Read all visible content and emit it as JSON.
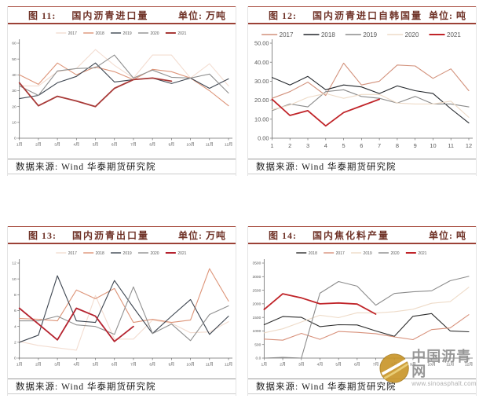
{
  "watermark": {
    "site_name": "中国沥青网",
    "site_url": "www.sinoasphalt.com",
    "logo_icon": "gold-swoosh-circle",
    "logo_color": "#c9962b"
  },
  "panels": [
    {
      "fig_label": "图 11:",
      "title": "国内沥青进口量",
      "unit": "单位: 万吨",
      "source": "数据来源: Wind 华泰期货研究院"
    },
    {
      "fig_label": "图 12:",
      "title": "国内沥青进口自韩国量",
      "unit": "单位: 吨",
      "source": "数据来源: Wind 华泰期货研究院"
    },
    {
      "fig_label": "图 13:",
      "title": "国内沥青出口量",
      "unit": "单位: 万吨",
      "source": "数据来源: Wind 华泰期货研究院"
    },
    {
      "fig_label": "图 14:",
      "title": "国内焦化料产量",
      "unit": "单位: 吨",
      "source": "数据来源: Wind 华泰期货研究院"
    }
  ],
  "theme": {
    "header_rule_color": "#9c4136",
    "header_text_color": "#6f3227",
    "axis_color": "#666666"
  },
  "chart_data": [
    {
      "type": "line",
      "title": "国内沥青进口量",
      "ylabel_unit": "万吨",
      "legend_position": "top",
      "categories": [
        "1月",
        "2月",
        "3月",
        "4月",
        "5月",
        "6月",
        "7月",
        "8月",
        "9月",
        "10月",
        "11月",
        "12月"
      ],
      "ylim": [
        0,
        60
      ],
      "yticks": [
        "0",
        "10",
        "20",
        "30",
        "40",
        "50",
        "60"
      ],
      "series": [
        {
          "name": "2017",
          "color": "#f3ddd1",
          "values": [
            33,
            33,
            42,
            44,
            56,
            46,
            38,
            52.5,
            52.5,
            38,
            47,
            33
          ]
        },
        {
          "name": "2018",
          "color": "#dd9478",
          "values": [
            40,
            34,
            47.5,
            40,
            45,
            42,
            37,
            43.5,
            42,
            38,
            30,
            20.5
          ]
        },
        {
          "name": "2019",
          "color": "#3e4651",
          "values": [
            25,
            27,
            35,
            39,
            47.5,
            35.5,
            37,
            38,
            34.5,
            38,
            31.5,
            37.5
          ]
        },
        {
          "name": "2020",
          "color": "#909090",
          "values": [
            33,
            27,
            42.5,
            44,
            44.5,
            52.5,
            38,
            43,
            38.5,
            38,
            40.5,
            28.5
          ]
        },
        {
          "name": "2021",
          "color": "#a83a38",
          "emphasis": true,
          "values": [
            35,
            20.5,
            26.5,
            23.5,
            20,
            31.5,
            37,
            38,
            36
          ]
        }
      ]
    },
    {
      "type": "line",
      "title": "国内沥青进口自韩国量",
      "ylabel_unit": "吨",
      "legend_position": "top",
      "categories": [
        "1",
        "2",
        "3",
        "4",
        "5",
        "6",
        "7",
        "8",
        "9",
        "10",
        "11",
        "12"
      ],
      "ylim": [
        0,
        50
      ],
      "yticks": [
        "0.00",
        "10.00",
        "20.00",
        "30.00",
        "40.00",
        "50.00"
      ],
      "series": [
        {
          "name": "2017",
          "color": "#d2917b",
          "values": [
            21,
            24.5,
            29.5,
            22.5,
            39.5,
            28,
            30,
            38.5,
            38,
            31.5,
            36.5,
            25
          ]
        },
        {
          "name": "2018",
          "color": "#23272c",
          "values": [
            32,
            28,
            32.5,
            25.5,
            28,
            27,
            23.5,
            27.5,
            25,
            23.5,
            15.5,
            8
          ]
        },
        {
          "name": "2019",
          "color": "#8b8b8b",
          "values": [
            14.5,
            18,
            16.5,
            24.5,
            25.5,
            22,
            21,
            18.5,
            22,
            18,
            18,
            16.5
          ]
        },
        {
          "name": "2020",
          "color": "#eedbc8",
          "values": [
            15,
            17.5,
            21.5,
            23.5,
            21,
            23,
            23,
            18.5,
            18,
            18,
            19.5,
            11
          ]
        },
        {
          "name": "2021",
          "color": "#c02429",
          "emphasis": true,
          "values": [
            20.5,
            12,
            14.5,
            6.5,
            13.5,
            17,
            20.5
          ]
        }
      ]
    },
    {
      "type": "line",
      "title": "国内沥青出口量",
      "ylabel_unit": "万吨",
      "legend_position": "top",
      "categories": [
        "1月",
        "2月",
        "3月",
        "4月",
        "5月",
        "6月",
        "7月",
        "8月",
        "9月",
        "10月",
        "11月",
        "12月"
      ],
      "ylim": [
        0,
        12
      ],
      "yticks": [
        "0",
        "2",
        "4",
        "6",
        "8",
        "10",
        "12"
      ],
      "series": [
        {
          "name": "2017",
          "color": "#f3ddd1",
          "values": [
            2.1,
            1.6,
            1.3,
            1.0,
            7.9,
            2.4,
            2.4,
            4.8,
            4.4,
            3.2,
            3.3,
            4.6
          ]
        },
        {
          "name": "2018",
          "color": "#dd9478",
          "values": [
            5.0,
            4.9,
            4.7,
            8.6,
            7.5,
            8.8,
            4.5,
            4.9,
            4.5,
            4.8,
            11.3,
            7.2
          ]
        },
        {
          "name": "2019",
          "color": "#3e4651",
          "values": [
            2.0,
            2.9,
            10.4,
            4.7,
            4.5,
            9.8,
            6.4,
            3.1,
            5.3,
            7.4,
            3.0,
            5.3
          ]
        },
        {
          "name": "2020",
          "color": "#909090",
          "values": [
            4.7,
            4.7,
            5.3,
            4.2,
            4.0,
            3.0,
            9.0,
            3.1,
            4.3,
            2.2,
            5.5,
            6.6
          ]
        },
        {
          "name": "2021",
          "color": "#b5232f",
          "emphasis": true,
          "values": [
            6.3,
            4.3,
            2.3,
            6.3,
            5.3,
            2.1,
            4.0
          ]
        }
      ]
    },
    {
      "type": "line",
      "title": "国内焦化料产量",
      "ylabel_unit": "吨",
      "legend_position": "top",
      "categories": [
        "1月",
        "2月",
        "3月",
        "4月",
        "5月",
        "6月",
        "7月",
        "8月",
        "9月",
        "10月",
        "11月",
        "12月"
      ],
      "ylim": [
        0,
        3500
      ],
      "yticks": [
        "0.0",
        "500",
        "1000",
        "1500",
        "2000",
        "2500",
        "3000",
        "3500"
      ],
      "series": [
        {
          "name": "2018",
          "color": "#2e2e2e",
          "values": [
            1230,
            1530,
            1500,
            1160,
            1230,
            1220,
            1000,
            800,
            1540,
            1640,
            1000,
            970
          ]
        },
        {
          "name": "2017",
          "color": "#d8917b",
          "values": [
            700,
            660,
            910,
            690,
            980,
            950,
            900,
            780,
            680,
            1050,
            1110,
            1600
          ]
        },
        {
          "name": "2019",
          "color": "#eedbc8",
          "values": [
            930,
            1080,
            1330,
            1580,
            1490,
            1670,
            1660,
            1710,
            1800,
            2020,
            2080,
            2610
          ]
        },
        {
          "name": "2020",
          "color": "#8b8b8b",
          "values": [
            0,
            30,
            0,
            2390,
            2820,
            2650,
            1950,
            2380,
            2440,
            2480,
            2850,
            3010
          ]
        },
        {
          "name": "2021",
          "color": "#c02429",
          "emphasis": true,
          "values": [
            1790,
            2370,
            2220,
            2000,
            2030,
            1990,
            1620
          ]
        }
      ]
    }
  ]
}
